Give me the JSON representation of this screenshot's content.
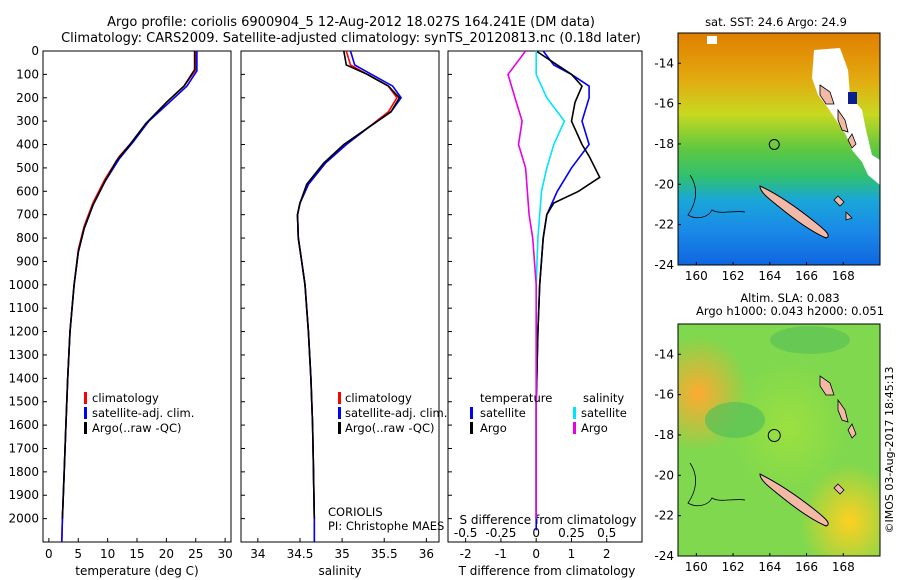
{
  "title_line1": "Argo profile: coriolis 6900904_5 12-Aug-2012 18.027S 164.241E (DM data)",
  "title_line2": "Climatology: CARS2009. Satellite-adjusted climatology: synTS_20120813.nc (0.18d later)",
  "timestamp": "©IMOS 03-Aug-2017 18:45:13",
  "colors": {
    "climatology": "#ff0000",
    "satellite": "#0000ff",
    "argo": "#000000",
    "cyan": "#00e5ff",
    "magenta": "#e600e6",
    "land": "#f2b9a6"
  },
  "legend_profile": [
    "climatology",
    "satellite-adj. clim.",
    "Argo(..raw -QC)"
  ],
  "diff_legend": {
    "temperature_title": "temperature",
    "salinity_title": "salinity",
    "t_items": [
      "satellite",
      "Argo"
    ],
    "s_items": [
      "satellite",
      "Argo"
    ]
  },
  "coriolis_note": [
    "CORIOLIS",
    "PI: Christophe MAES"
  ],
  "chart_data": [
    {
      "type": "line",
      "name": "temperature-profile",
      "xlabel": "temperature (deg C)",
      "xlim": [
        -1,
        31
      ],
      "ylim": [
        2100,
        0
      ],
      "xticks": [
        0,
        5,
        10,
        15,
        20,
        25,
        30
      ],
      "yticks": [
        0,
        100,
        200,
        300,
        400,
        500,
        600,
        700,
        800,
        900,
        1000,
        1100,
        1200,
        1300,
        1400,
        1500,
        1600,
        1700,
        1800,
        1900,
        2000
      ],
      "series": [
        {
          "name": "climatology",
          "color": "#ff0000",
          "points": [
            [
              25,
              0
            ],
            [
              25,
              80
            ],
            [
              23,
              150
            ],
            [
              20,
              220
            ],
            [
              17,
              300
            ],
            [
              14.5,
              380
            ],
            [
              12,
              450
            ],
            [
              9.5,
              550
            ],
            [
              7.5,
              650
            ],
            [
              6,
              750
            ],
            [
              5,
              850
            ],
            [
              4.3,
              1000
            ],
            [
              3.6,
              1200
            ],
            [
              3.2,
              1400
            ],
            [
              2.9,
              1600
            ],
            [
              2.6,
              1800
            ],
            [
              2.3,
              2000
            ],
            [
              2.2,
              2100
            ]
          ]
        },
        {
          "name": "satellite-adj. clim.",
          "color": "#0000ff",
          "points": [
            [
              25.2,
              0
            ],
            [
              25.2,
              85
            ],
            [
              23.5,
              150
            ],
            [
              20.5,
              220
            ],
            [
              17,
              300
            ],
            [
              14.3,
              390
            ],
            [
              12,
              460
            ],
            [
              9.5,
              560
            ],
            [
              7.5,
              660
            ],
            [
              6,
              760
            ],
            [
              5,
              860
            ],
            [
              4.3,
              1000
            ],
            [
              3.6,
              1200
            ],
            [
              3.2,
              1400
            ],
            [
              2.9,
              1600
            ],
            [
              2.6,
              1800
            ],
            [
              2.3,
              2000
            ],
            [
              2.2,
              2100
            ]
          ]
        },
        {
          "name": "Argo(..raw -QC)",
          "color": "#000000",
          "points": [
            [
              24.8,
              0
            ],
            [
              24.8,
              80
            ],
            [
              23,
              150
            ],
            [
              20,
              220
            ],
            [
              16.5,
              310
            ],
            [
              13.8,
              400
            ],
            [
              11.5,
              470
            ],
            [
              9.5,
              560
            ],
            [
              7.5,
              660
            ],
            [
              6,
              760
            ],
            [
              5,
              860
            ],
            [
              4.3,
              1000
            ],
            [
              3.6,
              1200
            ],
            [
              3.2,
              1400
            ],
            [
              2.9,
              1600
            ],
            [
              2.6,
              1800
            ],
            [
              2.3,
              2000
            ]
          ]
        }
      ]
    },
    {
      "type": "line",
      "name": "salinity-profile",
      "xlabel": "salinity",
      "xlim": [
        33.8,
        36.15
      ],
      "ylim": [
        2100,
        0
      ],
      "xticks": [
        34,
        34.5,
        35,
        35.5,
        36
      ],
      "series": [
        {
          "name": "climatology",
          "color": "#ff0000",
          "points": [
            [
              35.05,
              0
            ],
            [
              35.1,
              60
            ],
            [
              35.3,
              100
            ],
            [
              35.55,
              150
            ],
            [
              35.65,
              200
            ],
            [
              35.55,
              260
            ],
            [
              35.3,
              330
            ],
            [
              35.05,
              400
            ],
            [
              34.8,
              480
            ],
            [
              34.6,
              570
            ],
            [
              34.5,
              650
            ],
            [
              34.47,
              700
            ],
            [
              34.48,
              800
            ],
            [
              34.52,
              900
            ],
            [
              34.56,
              1000
            ],
            [
              34.6,
              1200
            ],
            [
              34.63,
              1400
            ],
            [
              34.65,
              1600
            ],
            [
              34.66,
              1800
            ],
            [
              34.67,
              2000
            ],
            [
              34.67,
              2100
            ]
          ]
        },
        {
          "name": "satellite-adj. clim.",
          "color": "#0000ff",
          "points": [
            [
              35.1,
              0
            ],
            [
              35.15,
              60
            ],
            [
              35.35,
              100
            ],
            [
              35.6,
              150
            ],
            [
              35.7,
              200
            ],
            [
              35.58,
              260
            ],
            [
              35.3,
              330
            ],
            [
              35.05,
              400
            ],
            [
              34.8,
              480
            ],
            [
              34.6,
              570
            ],
            [
              34.5,
              650
            ],
            [
              34.47,
              700
            ],
            [
              34.48,
              800
            ],
            [
              34.52,
              900
            ],
            [
              34.56,
              1000
            ],
            [
              34.6,
              1200
            ],
            [
              34.63,
              1400
            ],
            [
              34.65,
              1600
            ],
            [
              34.66,
              1800
            ],
            [
              34.67,
              2000
            ],
            [
              34.67,
              2100
            ]
          ]
        },
        {
          "name": "Argo(..raw -QC)",
          "color": "#000000",
          "points": [
            [
              35.02,
              0
            ],
            [
              35.05,
              60
            ],
            [
              35.3,
              100
            ],
            [
              35.55,
              150
            ],
            [
              35.68,
              200
            ],
            [
              35.58,
              260
            ],
            [
              35.3,
              330
            ],
            [
              35.02,
              400
            ],
            [
              34.78,
              480
            ],
            [
              34.58,
              570
            ],
            [
              34.5,
              650
            ],
            [
              34.47,
              700
            ],
            [
              34.48,
              800
            ],
            [
              34.52,
              900
            ],
            [
              34.56,
              1000
            ],
            [
              34.6,
              1200
            ],
            [
              34.63,
              1400
            ],
            [
              34.65,
              1600
            ],
            [
              34.66,
              1800
            ],
            [
              34.67,
              2000
            ]
          ]
        }
      ]
    },
    {
      "type": "line",
      "name": "difference-profile",
      "xlabel": "T difference from climatology",
      "xlabel_top": "S difference from climatology",
      "xlim": [
        -2.5,
        3
      ],
      "ylim": [
        2100,
        0
      ],
      "xticks": [
        -2,
        -1,
        0,
        1,
        2
      ],
      "xticks_s": [
        -0.5,
        -0.25,
        0,
        0.25,
        0.5
      ],
      "series": [
        {
          "name": "temperature satellite",
          "color": "#0000ff",
          "points": [
            [
              0.2,
              0
            ],
            [
              0.5,
              60
            ],
            [
              1,
              100
            ],
            [
              1.5,
              150
            ],
            [
              1.5,
              200
            ],
            [
              1.3,
              300
            ],
            [
              1.5,
              400
            ],
            [
              1,
              500
            ],
            [
              0.6,
              600
            ],
            [
              0.3,
              700
            ],
            [
              0.2,
              800
            ],
            [
              0.1,
              1000
            ],
            [
              0.05,
              1200
            ],
            [
              0,
              1500
            ],
            [
              0,
              1800
            ],
            [
              0,
              2050
            ]
          ]
        },
        {
          "name": "temperature Argo",
          "color": "#000000",
          "points": [
            [
              0,
              0
            ],
            [
              0.5,
              50
            ],
            [
              1,
              100
            ],
            [
              1.3,
              150
            ],
            [
              1.1,
              220
            ],
            [
              1,
              300
            ],
            [
              1.3,
              400
            ],
            [
              1.5,
              450
            ],
            [
              1.8,
              540
            ],
            [
              1.2,
              600
            ],
            [
              0.5,
              650
            ],
            [
              0.3,
              700
            ],
            [
              0.2,
              800
            ],
            [
              0.1,
              1000
            ],
            [
              0.05,
              1200
            ],
            [
              0,
              1500
            ],
            [
              0,
              1800
            ],
            [
              0,
              2000
            ]
          ]
        },
        {
          "name": "salinity satellite",
          "color": "#00e5ff",
          "points": [
            [
              0,
              0
            ],
            [
              0,
              100
            ],
            [
              0.3,
              200
            ],
            [
              0.8,
              300
            ],
            [
              0.5,
              400
            ],
            [
              0.3,
              500
            ],
            [
              0.15,
              600
            ],
            [
              0.1,
              700
            ],
            [
              0.05,
              800
            ],
            [
              0,
              1000
            ],
            [
              0,
              1500
            ],
            [
              0,
              2000
            ]
          ]
        },
        {
          "name": "salinity Argo",
          "color": "#e600e6",
          "points": [
            [
              -0.3,
              0
            ],
            [
              -0.8,
              100
            ],
            [
              -0.6,
              200
            ],
            [
              -0.4,
              300
            ],
            [
              -0.5,
              400
            ],
            [
              -0.3,
              500
            ],
            [
              -0.2,
              700
            ],
            [
              -0.1,
              800
            ],
            [
              0,
              1000
            ],
            [
              0,
              1500
            ],
            [
              0,
              2000
            ]
          ]
        }
      ]
    },
    {
      "type": "heatmap",
      "name": "sst-map",
      "title": "sat. SST: 24.6  Argo: 24.9",
      "xlim": [
        159,
        170
      ],
      "ylim": [
        -24,
        -12.5
      ],
      "xticks": [
        160,
        162,
        164,
        166,
        168
      ],
      "yticks": [
        -14,
        -16,
        -18,
        -20,
        -22,
        -24
      ],
      "argo_position": [
        164.241,
        -18.027
      ]
    },
    {
      "type": "heatmap",
      "name": "sla-map",
      "title_line1": "Altim. SLA: 0.083",
      "title_line2": "Argo h1000: 0.043  h2000: 0.051",
      "xlim": [
        159,
        170
      ],
      "ylim": [
        -24,
        -12.5
      ],
      "xticks": [
        160,
        162,
        164,
        166,
        168
      ],
      "yticks": [
        -14,
        -16,
        -18,
        -20,
        -22,
        -24
      ],
      "argo_position": [
        164.241,
        -18.027
      ]
    }
  ]
}
